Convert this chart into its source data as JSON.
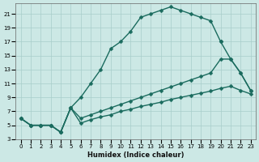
{
  "xlabel": "Humidex (Indice chaleur)",
  "bg_color": "#cce8e5",
  "grid_color": "#a8ceca",
  "line_color": "#1a6b5e",
  "xlim": [
    -0.5,
    23.5
  ],
  "ylim": [
    3,
    22.5
  ],
  "xticks": [
    0,
    1,
    2,
    3,
    4,
    5,
    6,
    7,
    8,
    9,
    10,
    11,
    12,
    13,
    14,
    15,
    16,
    17,
    18,
    19,
    20,
    21,
    22,
    23
  ],
  "yticks": [
    3,
    5,
    7,
    9,
    11,
    13,
    15,
    17,
    19,
    21
  ],
  "line1_x": [
    0,
    1,
    2,
    3,
    4,
    5,
    6,
    7,
    8,
    9,
    10,
    11,
    12,
    13,
    14,
    15,
    16,
    17,
    18,
    19,
    20
  ],
  "line1_y": [
    6,
    5,
    5,
    5,
    4,
    7.5,
    9,
    11,
    13,
    16,
    17,
    18.5,
    20.5,
    21,
    21.5,
    22,
    21.5,
    21,
    20.5,
    20,
    17
  ],
  "line2_x": [
    20,
    21,
    22,
    23
  ],
  "line2_y": [
    17,
    14.5,
    12.5,
    10
  ],
  "line3_x": [
    0,
    1,
    2,
    3,
    4,
    5,
    6,
    7,
    8,
    9,
    10,
    11,
    12,
    13,
    14,
    15,
    16,
    17,
    18,
    19,
    20,
    21,
    22,
    23
  ],
  "line3_y": [
    6,
    5,
    5,
    5,
    4,
    7.5,
    6.0,
    6.5,
    7.0,
    7.5,
    8.0,
    8.5,
    9.0,
    9.5,
    10.0,
    10.5,
    11.0,
    11.5,
    12.0,
    12.5,
    14.5,
    14.5,
    12.5,
    10.0
  ],
  "line4_x": [
    0,
    1,
    2,
    3,
    4,
    5,
    6,
    7,
    8,
    9,
    10,
    11,
    12,
    13,
    14,
    15,
    16,
    17,
    18,
    19,
    20,
    21,
    22,
    23
  ],
  "line4_y": [
    6,
    5,
    5,
    5,
    4,
    7.5,
    5.3,
    5.8,
    6.2,
    6.5,
    7.0,
    7.3,
    7.7,
    8.0,
    8.3,
    8.7,
    9.0,
    9.3,
    9.6,
    9.9,
    10.3,
    10.6,
    10.0,
    9.5
  ]
}
